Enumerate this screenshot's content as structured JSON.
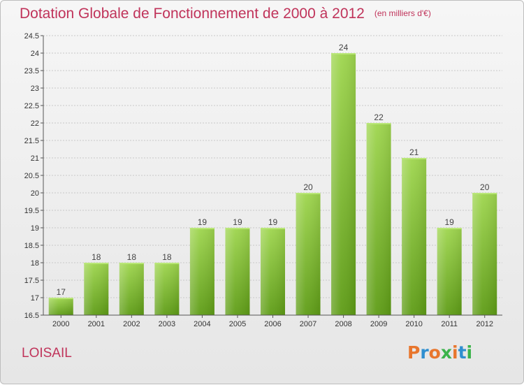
{
  "header": {
    "title": "Dotation Globale de Fonctionnement de 2000 à 2012",
    "subtitle": "(en milliers d'€)"
  },
  "commune": "LOISAIL",
  "logo": {
    "text": "Proxiti",
    "colors": [
      "#e8762d",
      "#2f8fd0",
      "#e8762d",
      "#3bb34a",
      "#e8762d",
      "#2f8fd0",
      "#3bb34a"
    ]
  },
  "colors": {
    "accent": "#c0335a",
    "bar_top": "#9fd64f",
    "bar_bottom": "#5e9c16",
    "grid": "#c8c8c8",
    "axis": "#555555"
  },
  "chart_data": {
    "type": "bar",
    "title": "Dotation Globale de Fonctionnement de 2000 à 2012",
    "subtitle": "(en milliers d'€)",
    "categories": [
      "2000",
      "2001",
      "2002",
      "2003",
      "2004",
      "2005",
      "2006",
      "2007",
      "2008",
      "2009",
      "2010",
      "2011",
      "2012"
    ],
    "values": [
      17,
      18,
      18,
      18,
      19,
      19,
      19,
      20,
      24,
      22,
      21,
      19,
      20
    ],
    "ylim": [
      16.5,
      24.5
    ],
    "yticks": [
      "16.5",
      "17",
      "17.5",
      "18",
      "18.5",
      "19",
      "19.5",
      "20",
      "20.5",
      "21",
      "21.5",
      "22",
      "22.5",
      "23",
      "23.5",
      "24",
      "24.5"
    ],
    "xlabel": "",
    "ylabel": "",
    "grid": "horizontal",
    "legend": "none"
  }
}
